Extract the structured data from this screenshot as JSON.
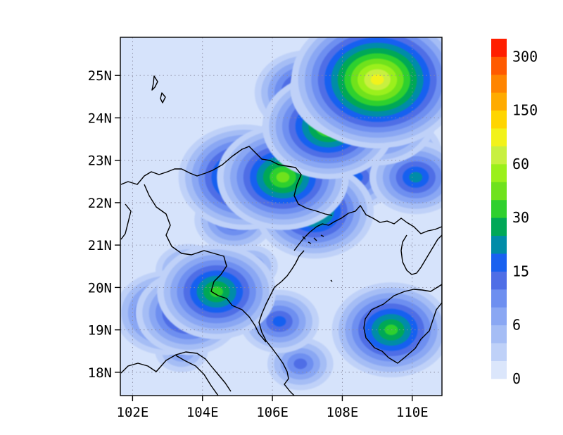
{
  "map": {
    "lat_labels": [
      "25N",
      "24N",
      "23N",
      "22N",
      "21N",
      "20N",
      "19N",
      "18N"
    ],
    "lon_labels": [
      "102E",
      "104E",
      "106E",
      "108E",
      "110E"
    ],
    "lat_values": [
      25,
      24,
      23,
      22,
      21,
      20,
      19,
      18
    ],
    "lon_values": [
      102,
      104,
      106,
      108,
      110
    ],
    "extent": {
      "lon_min": 101.65,
      "lon_max": 110.85,
      "lat_min": 17.45,
      "lat_max": 25.9
    },
    "grid": true,
    "background_color": "#d6e3fb",
    "coastline_color": "#000000"
  },
  "colorbar": {
    "levels": [
      "0",
      "6",
      "15",
      "30",
      "60",
      "150",
      "300"
    ],
    "colors": [
      "#dbe6fb",
      "#bfd1f8",
      "#a5bdf5",
      "#8aa7f3",
      "#6e8ff0",
      "#4f6ee6",
      "#1961f0",
      "#008ca8",
      "#00a857",
      "#2fd02e",
      "#6fe21d",
      "#9bf01b",
      "#c8f040",
      "#f2f21a",
      "#ffd500",
      "#ffab00",
      "#ff8500",
      "#ff5a00",
      "#ff1e00"
    ]
  },
  "chart_data": {
    "type": "heatmap",
    "title": "",
    "xlabel": "",
    "ylabel": "",
    "x_ticks": [
      "102E",
      "104E",
      "106E",
      "108E",
      "110E"
    ],
    "y_ticks": [
      "18N",
      "19N",
      "20N",
      "21N",
      "22N",
      "23N",
      "24N",
      "25N"
    ],
    "colorbar_ticks": [
      0,
      6,
      15,
      30,
      60,
      150,
      300
    ],
    "cells": [
      {
        "lon": 103.0,
        "lat": 19.4,
        "value": 8
      },
      {
        "lon": 103.6,
        "lat": 19.4,
        "value": 8
      },
      {
        "lon": 104.4,
        "lat": 19.9,
        "value": 9
      },
      {
        "lon": 103.6,
        "lat": 20.4,
        "value": 5
      },
      {
        "lon": 105.2,
        "lat": 22.6,
        "value": 10
      },
      {
        "lon": 105.6,
        "lat": 22.8,
        "value": 7
      },
      {
        "lon": 106.3,
        "lat": 22.6,
        "value": 10
      },
      {
        "lon": 104.9,
        "lat": 21.6,
        "value": 6
      },
      {
        "lon": 107.2,
        "lat": 21.8,
        "value": 9
      },
      {
        "lon": 106.9,
        "lat": 23.2,
        "value": 8
      },
      {
        "lon": 107.6,
        "lat": 23.8,
        "value": 10
      },
      {
        "lon": 107.0,
        "lat": 24.6,
        "value": 8
      },
      {
        "lon": 107.8,
        "lat": 25.0,
        "value": 7
      },
      {
        "lon": 108.4,
        "lat": 24.7,
        "value": 10
      },
      {
        "lon": 109.0,
        "lat": 24.9,
        "value": 13
      },
      {
        "lon": 109.9,
        "lat": 25.0,
        "value": 10
      },
      {
        "lon": 109.0,
        "lat": 24.0,
        "value": 9
      },
      {
        "lon": 109.7,
        "lat": 23.2,
        "value": 6
      },
      {
        "lon": 108.4,
        "lat": 22.6,
        "value": 6
      },
      {
        "lon": 110.1,
        "lat": 22.6,
        "value": 7
      },
      {
        "lon": 109.4,
        "lat": 19.0,
        "value": 9
      },
      {
        "lon": 106.2,
        "lat": 19.2,
        "value": 6
      },
      {
        "lon": 106.8,
        "lat": 18.2,
        "value": 5
      },
      {
        "lon": 103.4,
        "lat": 18.5,
        "value": 4
      },
      {
        "lon": 105.4,
        "lat": 20.5,
        "value": 4
      }
    ]
  }
}
